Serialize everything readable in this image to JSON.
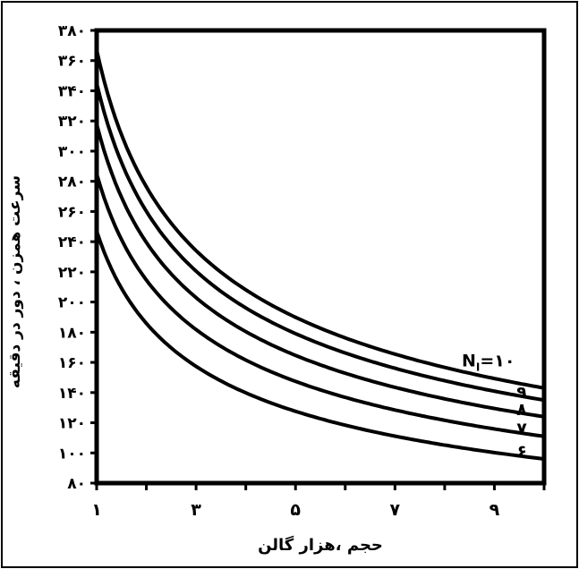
{
  "chart_data": {
    "type": "line",
    "title": "",
    "xlabel": "حجم ،هزار گالن",
    "ylabel": "سرعت همزن ، دور در دقیقه",
    "xlim": [
      1,
      10
    ],
    "ylim": [
      80,
      380
    ],
    "x_ticks": [
      1,
      3,
      5,
      7,
      9
    ],
    "x_tick_labels": [
      "۱",
      "۳",
      "۵",
      "۷",
      "۹"
    ],
    "y_ticks": [
      80,
      100,
      120,
      140,
      160,
      180,
      200,
      220,
      240,
      260,
      280,
      300,
      320,
      340,
      360,
      380
    ],
    "y_tick_labels": [
      "۸۰",
      "۱۰۰",
      "۱۲۰",
      "۱۴۰",
      "۱۶۰",
      "۱۸۰",
      "۲۰۰",
      "۲۲۰",
      "۲۴۰",
      "۲۶۰",
      "۲۸۰",
      "۳۰۰",
      "۳۲۰",
      "۳۴۰",
      "۳۶۰",
      "۳۸۰"
    ],
    "grid": false,
    "series": [
      {
        "name": "N_I = ۱۰",
        "x": [
          1,
          2,
          3,
          4,
          5,
          6,
          7,
          8,
          9,
          10
        ],
        "values": [
          367,
          266,
          223,
          198,
          182,
          170,
          161,
          154,
          148,
          143
        ]
      },
      {
        "name": "۹",
        "x": [
          1,
          2,
          3,
          4,
          5,
          6,
          7,
          8,
          9,
          10
        ],
        "values": [
          345,
          249,
          209,
          186,
          171,
          160,
          152,
          145,
          139,
          135
        ]
      },
      {
        "name": "۸",
        "x": [
          1,
          2,
          3,
          4,
          5,
          6,
          7,
          8,
          9,
          10
        ],
        "values": [
          318,
          229,
          192,
          171,
          157,
          147,
          139,
          133,
          128,
          124
        ]
      },
      {
        "name": "۷",
        "x": [
          1,
          2,
          3,
          4,
          5,
          6,
          7,
          8,
          9,
          10
        ],
        "values": [
          285,
          206,
          173,
          154,
          141,
          132,
          125,
          120,
          115,
          111
        ]
      },
      {
        "name": "۶",
        "x": [
          1,
          2,
          3,
          4,
          5,
          6,
          7,
          8,
          9,
          10
        ],
        "values": [
          247,
          178,
          149,
          133,
          122,
          114,
          108,
          103,
          99,
          96
        ]
      }
    ],
    "curve_labels": [
      {
        "text": "N",
        "sub": "I",
        "rest": "=۱۰"
      },
      {
        "text": "۹"
      },
      {
        "text": "۸"
      },
      {
        "text": "۷"
      },
      {
        "text": "۶"
      }
    ],
    "line_color": "#000000"
  }
}
